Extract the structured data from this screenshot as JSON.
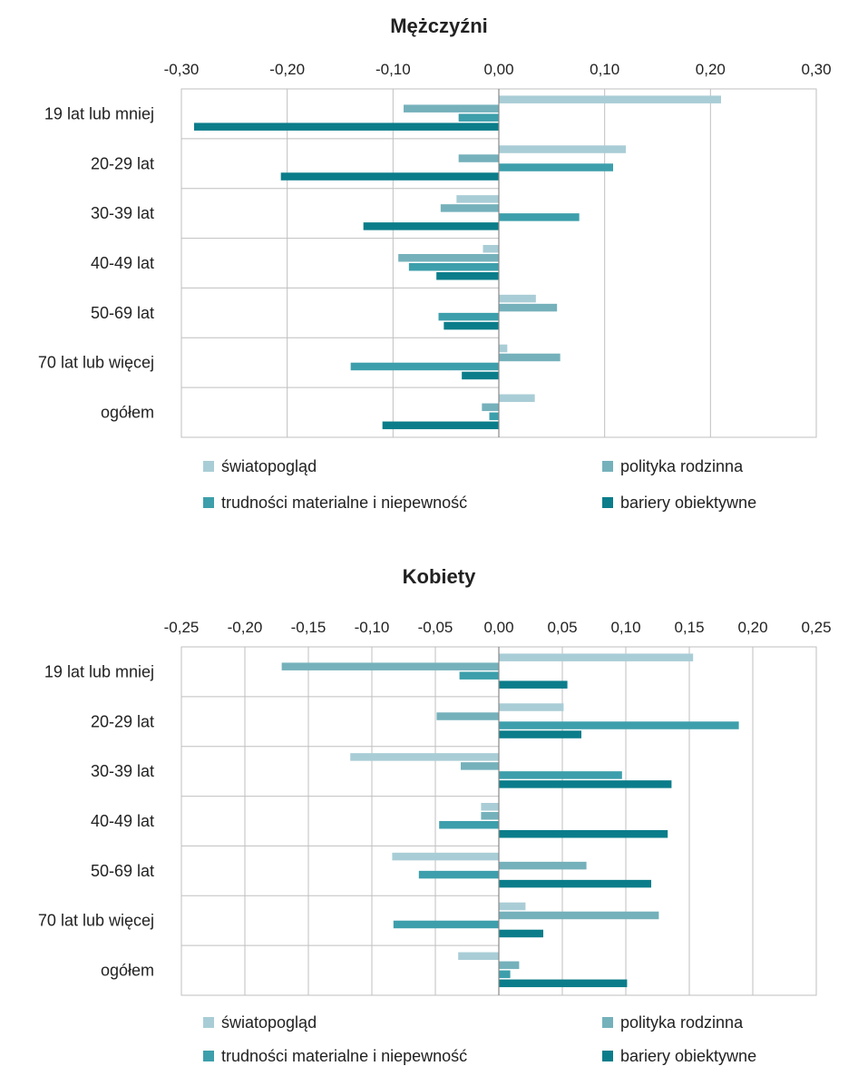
{
  "colors": {
    "swiatopoglad": "#a9cdd6",
    "polityka_rodzinna": "#75b1bb",
    "trudnosci_materialne": "#3d9fab",
    "bariery_obiektywne": "#0b7d8a",
    "grid": "#bfbfbf",
    "axis": "#888888"
  },
  "chart_data": [
    {
      "type": "bar",
      "orientation": "horizontal",
      "title": "Mężczyźni",
      "xlim": [
        -0.3,
        0.3
      ],
      "ticks": [
        -0.3,
        -0.2,
        -0.1,
        0.0,
        0.1,
        0.2,
        0.3
      ],
      "tick_labels": [
        "-0,30",
        "-0,20",
        "-0,10",
        "0,00",
        "0,10",
        "0,20",
        "0,30"
      ],
      "categories": [
        "19 lat lub mniej",
        "20-29 lat",
        "30-39 lat",
        "40-49 lat",
        "50-69 lat",
        "70 lat lub więcej",
        "ogółem"
      ],
      "series": [
        {
          "name": "światopogląd",
          "color": "#a9cdd6",
          "values": [
            0.21,
            0.12,
            -0.04,
            -0.015,
            0.035,
            0.008,
            0.034
          ]
        },
        {
          "name": "polityka rodzinna",
          "color": "#75b1bb",
          "values": [
            -0.09,
            -0.038,
            -0.055,
            -0.095,
            0.055,
            0.058,
            -0.016
          ]
        },
        {
          "name": "trudności materialne i niepewność",
          "color": "#3d9fab",
          "values": [
            -0.038,
            0.108,
            0.076,
            -0.085,
            -0.057,
            -0.14,
            -0.009
          ]
        },
        {
          "name": "bariery obiektywne",
          "color": "#0b7d8a",
          "values": [
            -0.288,
            -0.206,
            -0.128,
            -0.059,
            -0.052,
            -0.035,
            -0.11
          ]
        }
      ],
      "legend": "bottom",
      "grid": true
    },
    {
      "type": "bar",
      "orientation": "horizontal",
      "title": "Kobiety",
      "xlim": [
        -0.25,
        0.25
      ],
      "ticks": [
        -0.25,
        -0.2,
        -0.15,
        -0.1,
        -0.05,
        0.0,
        0.05,
        0.1,
        0.15,
        0.2,
        0.25
      ],
      "tick_labels": [
        "-0,25",
        "-0,20",
        "-0,15",
        "-0,10",
        "-0,05",
        "0,00",
        "0,05",
        "0,10",
        "0,15",
        "0,20",
        "0,25"
      ],
      "categories": [
        "19 lat lub mniej",
        "20-29 lat",
        "30-39 lat",
        "40-49 lat",
        "50-69 lat",
        "70 lat lub więcej",
        "ogółem"
      ],
      "series": [
        {
          "name": "światopogląd",
          "color": "#a9cdd6",
          "values": [
            0.153,
            0.051,
            -0.117,
            -0.014,
            -0.084,
            0.021,
            -0.032
          ]
        },
        {
          "name": "polityka rodzinna",
          "color": "#75b1bb",
          "values": [
            -0.171,
            -0.049,
            -0.03,
            -0.014,
            0.069,
            0.126,
            0.016
          ]
        },
        {
          "name": "trudności materialne i niepewność",
          "color": "#3d9fab",
          "values": [
            -0.031,
            0.189,
            0.097,
            -0.047,
            -0.063,
            -0.083,
            0.009
          ]
        },
        {
          "name": "bariery obiektywne",
          "color": "#0b7d8a",
          "values": [
            0.054,
            0.065,
            0.136,
            0.133,
            0.12,
            0.035,
            0.101
          ]
        }
      ],
      "legend": "bottom",
      "grid": true
    }
  ]
}
